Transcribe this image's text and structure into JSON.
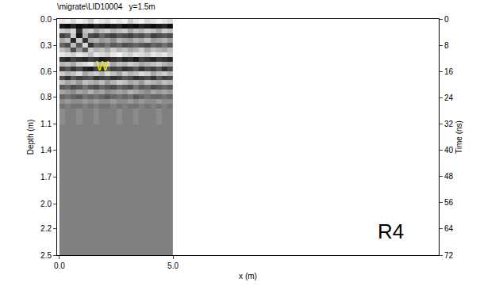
{
  "chart_data": {
    "type": "heatmap",
    "title": "\\migrate\\LID10004   y=1.5m",
    "x_label": "x (m)",
    "y_label": "Depth (m)",
    "y2_label": "Time (ns)",
    "grid": false,
    "xlim": [
      -0.1,
      16.7
    ],
    "xticks": [
      {
        "value": 0,
        "label": "0.0"
      },
      {
        "value": 5,
        "label": "5.0"
      }
    ],
    "ylim": [
      2.5,
      0
    ],
    "yticks": [
      {
        "value": 0,
        "label": "0.0"
      },
      {
        "value": 0.28,
        "label": "0.3"
      },
      {
        "value": 0.56,
        "label": "0.6"
      },
      {
        "value": 0.83,
        "label": "0.8"
      },
      {
        "value": 1.11,
        "label": "1.1"
      },
      {
        "value": 1.39,
        "label": "1.4"
      },
      {
        "value": 1.67,
        "label": "1.7"
      },
      {
        "value": 1.96,
        "label": "2.0"
      },
      {
        "value": 2.22,
        "label": "2.2"
      },
      2.5
    ],
    "y2lim": [
      72,
      0
    ],
    "y2ticks": [
      0,
      8,
      16,
      24,
      32,
      40,
      48,
      56,
      64,
      72
    ],
    "zlim": [
      -1,
      1
    ],
    "x": [
      0.125,
      0.375,
      0.625,
      0.875,
      1.125,
      1.375,
      1.625,
      1.875,
      2.125,
      2.375,
      2.625,
      2.875,
      3.125,
      3.375,
      3.625,
      3.875,
      4.125,
      4.375,
      4.625,
      4.875
    ],
    "y": [
      0.025,
      0.075,
      0.125,
      0.175,
      0.225,
      0.275,
      0.325,
      0.375,
      0.425,
      0.475,
      0.525,
      0.575,
      0.625,
      0.675,
      0.725,
      0.775,
      0.825,
      0.875,
      0.925,
      0.975,
      1.25,
      1.75,
      2.25
    ],
    "cells": [
      [
        0.8,
        0.9,
        0.7,
        0.9,
        0.8,
        0.6,
        0.9,
        0.8,
        0.7,
        0.9,
        0.8,
        0.9,
        0.6,
        0.8,
        0.9,
        0.7,
        0.8,
        0.9,
        0.8,
        0.7
      ],
      [
        -0.8,
        -0.9,
        -0.7,
        -0.9,
        -0.8,
        -0.9,
        -0.7,
        -0.8,
        -0.9,
        -0.8,
        -0.7,
        -0.9,
        -0.8,
        -0.9,
        -0.7,
        -0.8,
        -0.9,
        -0.8,
        -0.7,
        -0.9
      ],
      [
        0.6,
        0.5,
        0.7,
        -0.6,
        0.5,
        0.6,
        0.3,
        0.5,
        0.6,
        0.4,
        0.5,
        0.6,
        0.3,
        0.5,
        0.4,
        0.6,
        0.5,
        0.3,
        0.6,
        0.5
      ],
      [
        -0.5,
        -0.3,
        0.6,
        -0.8,
        0.4,
        -0.4,
        -0.5,
        -0.2,
        -0.4,
        -0.5,
        -0.3,
        -0.4,
        -0.5,
        -0.3,
        -0.4,
        -0.2,
        -0.5,
        -0.4,
        -0.3,
        -0.4
      ],
      [
        0.3,
        0.5,
        -0.7,
        0.6,
        -0.6,
        0.3,
        0.4,
        0.2,
        0.3,
        0.1,
        0.4,
        0.3,
        0.2,
        0.4,
        0.3,
        0.5,
        0.2,
        0.3,
        0.4,
        0.2
      ],
      [
        -0.2,
        -0.4,
        0.5,
        -0.3,
        0.7,
        -0.6,
        -0.2,
        -0.3,
        -0.1,
        -0.3,
        -0.2,
        -0.4,
        -0.3,
        -0.2,
        -0.3,
        -0.4,
        -0.2,
        -0.3,
        -0.1,
        -0.3
      ],
      [
        0.5,
        0.3,
        -0.4,
        0.2,
        -0.3,
        0.6,
        0.4,
        0.5,
        0.3,
        0.6,
        0.4,
        0.5,
        0.3,
        0.4,
        0.6,
        0.3,
        0.5,
        0.4,
        0.3,
        0.5
      ],
      [
        0.8,
        0.7,
        0.6,
        0.8,
        0.7,
        0.5,
        0.8,
        0.7,
        0.6,
        0.8,
        0.9,
        0.7,
        0.6,
        0.8,
        0.7,
        0.6,
        0.8,
        0.7,
        0.8,
        0.6
      ],
      [
        -0.6,
        -0.7,
        -0.5,
        -0.6,
        -0.7,
        -0.5,
        -0.6,
        -0.8,
        -0.7,
        -0.6,
        -0.5,
        -0.7,
        -0.6,
        -0.8,
        -0.5,
        -0.6,
        -0.7,
        -0.5,
        -0.6,
        -0.7
      ],
      [
        0.4,
        0.5,
        0.3,
        0.6,
        0.7,
        0.8,
        0.5,
        0.4,
        0.6,
        0.3,
        0.5,
        0.4,
        0.6,
        0.5,
        0.3,
        0.4,
        0.5,
        0.6,
        0.4,
        0.3
      ],
      [
        -0.5,
        -0.3,
        -0.6,
        -0.4,
        -0.7,
        -0.8,
        -0.5,
        -0.6,
        -0.3,
        -0.5,
        -0.4,
        -0.6,
        -0.5,
        -0.3,
        -0.6,
        -0.4,
        -0.5,
        -0.3,
        -0.6,
        -0.4
      ],
      [
        0.6,
        0.4,
        0.5,
        0.7,
        0.3,
        0.5,
        0.6,
        0.4,
        0.7,
        0.5,
        0.3,
        0.6,
        0.4,
        0.5,
        0.7,
        0.6,
        0.3,
        0.5,
        0.6,
        0.4
      ],
      [
        -0.4,
        -0.6,
        -0.3,
        -0.5,
        -0.4,
        -0.3,
        -0.6,
        -0.5,
        -0.4,
        -0.6,
        -0.5,
        -0.3,
        -0.4,
        -0.6,
        -0.5,
        -0.4,
        -0.6,
        -0.3,
        -0.5,
        -0.4
      ],
      [
        0.5,
        0.3,
        0.4,
        0.2,
        0.5,
        0.4,
        0.3,
        0.5,
        0.2,
        0.4,
        0.6,
        0.5,
        0.3,
        0.4,
        0.2,
        0.5,
        0.4,
        0.3,
        0.5,
        0.4
      ],
      [
        -0.3,
        -0.2,
        -0.4,
        -0.3,
        -0.1,
        -0.3,
        -0.4,
        -0.2,
        -0.3,
        -0.4,
        -0.2,
        -0.3,
        -0.4,
        -0.1,
        -0.3,
        -0.2,
        -0.4,
        -0.3,
        -0.2,
        -0.3
      ],
      [
        0.3,
        0.2,
        0.1,
        0.3,
        0.2,
        0.4,
        0.2,
        0.3,
        0.1,
        0.2,
        0.3,
        0.2,
        0.4,
        0.3,
        0.2,
        0.1,
        0.3,
        0.2,
        0.3,
        0.2
      ],
      [
        -0.2,
        -0.1,
        -0.2,
        -0.3,
        -0.1,
        -0.2,
        -0.1,
        -0.2,
        -0.3,
        -0.2,
        -0.1,
        -0.2,
        -0.1,
        -0.3,
        -0.2,
        -0.1,
        -0.2,
        -0.2,
        -0.1,
        -0.2
      ],
      [
        0.1,
        0.2,
        0.1,
        0.1,
        0.2,
        0.1,
        0.2,
        0.1,
        0.1,
        0.2,
        0.1,
        0.1,
        0.2,
        0.1,
        0.2,
        0.1,
        0.1,
        0.2,
        0.1,
        0.1
      ],
      [
        -0.1,
        0,
        -0.1,
        -0.1,
        0,
        -0.1,
        0,
        -0.1,
        -0.1,
        0,
        -0.1,
        0,
        -0.1,
        -0.1,
        0,
        -0.1,
        0,
        -0.1,
        0,
        -0.1
      ],
      [
        0.1,
        0,
        0,
        0.1,
        0,
        0,
        0.1,
        0,
        0,
        0,
        0.1,
        0,
        0,
        0.1,
        0,
        0,
        0,
        0.1,
        0,
        0
      ],
      [
        0,
        0,
        0,
        0,
        0,
        0,
        0,
        0,
        0,
        0,
        0,
        0,
        0,
        0,
        0,
        0,
        0,
        0,
        0,
        0
      ],
      [
        0,
        0,
        0,
        0,
        0,
        0,
        0,
        0,
        0,
        0,
        0,
        0,
        0,
        0,
        0,
        0,
        0,
        0,
        0,
        0
      ],
      [
        0,
        0,
        0,
        0,
        0,
        0,
        0,
        0,
        0,
        0,
        0,
        0,
        0,
        0,
        0,
        0,
        0,
        0,
        0,
        0
      ]
    ],
    "annotations": [
      {
        "text": "W",
        "x": 1.9,
        "y": 0.5,
        "color": "#f2e600"
      },
      {
        "text": "R4",
        "x": 14.6,
        "y": 2.25,
        "color": "#000000"
      }
    ]
  }
}
